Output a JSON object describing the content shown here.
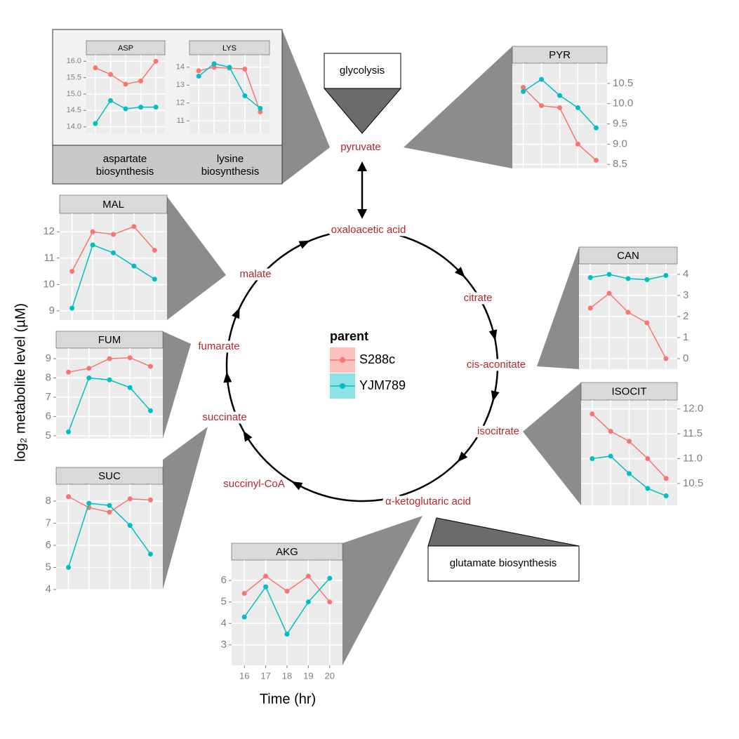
{
  "chart_data": [
    {
      "type": "line",
      "title": "ASP",
      "x": [
        16,
        17,
        18,
        19,
        20
      ],
      "xlim": [
        15.4,
        20.6
      ],
      "ylim": [
        13.8,
        16.2
      ],
      "yticks": [
        {
          "value": 14,
          "label": "14.0"
        },
        14.5,
        {
          "value": 15,
          "label": "15.0"
        },
        15.5,
        {
          "value": 16,
          "label": "16.0"
        }
      ],
      "y_side": "left",
      "grid": true,
      "series": [
        {
          "name": "S288c",
          "color": "#F8766D",
          "values": [
            15.8,
            15.6,
            15.3,
            15.4,
            16.0
          ]
        },
        {
          "name": "YJM789",
          "color": "#00BFC4",
          "values": [
            14.1,
            14.8,
            14.55,
            14.6,
            14.6
          ]
        }
      ]
    },
    {
      "type": "line",
      "title": "LYS",
      "x": [
        16,
        17,
        18,
        19,
        20
      ],
      "xlim": [
        15.4,
        20.6
      ],
      "ylim": [
        10.3,
        14.7
      ],
      "yticks": [
        11,
        12,
        13,
        14
      ],
      "y_side": "left",
      "grid": true,
      "series": [
        {
          "name": "S288c",
          "color": "#F8766D",
          "values": [
            13.8,
            14.0,
            13.95,
            13.9,
            11.5
          ]
        },
        {
          "name": "YJM789",
          "color": "#00BFC4",
          "values": [
            13.5,
            14.2,
            14.0,
            12.4,
            11.7
          ]
        }
      ]
    },
    {
      "type": "line",
      "title": "PYR",
      "x": [
        16,
        17,
        18,
        19,
        20
      ],
      "xlim": [
        15.4,
        20.6
      ],
      "ylim": [
        8.4,
        11.0
      ],
      "yticks": [
        8.5,
        {
          "value": 9,
          "label": "9.0"
        },
        9.5,
        {
          "value": 10,
          "label": "10.0"
        },
        10.5
      ],
      "y_side": "right",
      "grid": true,
      "series": [
        {
          "name": "S288c",
          "color": "#F8766D",
          "values": [
            10.4,
            9.95,
            9.9,
            9.0,
            8.6
          ]
        },
        {
          "name": "YJM789",
          "color": "#00BFC4",
          "values": [
            10.3,
            10.6,
            10.2,
            9.9,
            9.4
          ]
        }
      ]
    },
    {
      "type": "line",
      "title": "MAL",
      "x": [
        16,
        17,
        18,
        19,
        20
      ],
      "xlim": [
        15.4,
        20.6
      ],
      "ylim": [
        8.65,
        12.7
      ],
      "yticks": [
        9,
        10,
        11,
        12
      ],
      "y_side": "left",
      "grid": true,
      "series": [
        {
          "name": "S288c",
          "color": "#F8766D",
          "values": [
            10.5,
            12.0,
            11.9,
            12.2,
            11.3
          ]
        },
        {
          "name": "YJM789",
          "color": "#00BFC4",
          "values": [
            9.1,
            11.5,
            11.2,
            10.7,
            10.2
          ]
        }
      ]
    },
    {
      "type": "line",
      "title": "FUM",
      "x": [
        16,
        17,
        18,
        19,
        20
      ],
      "xlim": [
        15.4,
        20.6
      ],
      "ylim": [
        4.85,
        9.55
      ],
      "yticks": [
        5,
        6,
        7,
        8,
        9
      ],
      "y_side": "left",
      "grid": true,
      "series": [
        {
          "name": "S288c",
          "color": "#F8766D",
          "values": [
            8.3,
            8.5,
            9.0,
            9.05,
            8.6
          ]
        },
        {
          "name": "YJM789",
          "color": "#00BFC4",
          "values": [
            5.2,
            8.0,
            7.9,
            7.5,
            6.3
          ]
        }
      ]
    },
    {
      "type": "line",
      "title": "SUC",
      "x": [
        16,
        17,
        18,
        19,
        20
      ],
      "xlim": [
        15.4,
        20.6
      ],
      "ylim": [
        4.0,
        8.76
      ],
      "yticks": [
        4,
        5,
        6,
        7,
        8
      ],
      "y_side": "left",
      "grid": true,
      "series": [
        {
          "name": "S288c",
          "color": "#F8766D",
          "values": [
            8.2,
            7.7,
            7.5,
            8.1,
            8.05
          ]
        },
        {
          "name": "YJM789",
          "color": "#00BFC4",
          "values": [
            5.0,
            7.9,
            7.8,
            6.9,
            5.6
          ]
        }
      ]
    },
    {
      "type": "line",
      "title": "AKG",
      "x": [
        16,
        17,
        18,
        19,
        20
      ],
      "xlim": [
        15.4,
        20.6
      ],
      "ylim": [
        2.05,
        6.95
      ],
      "xticks": [
        16,
        17,
        18,
        19,
        20
      ],
      "yticks": [
        3,
        4,
        5,
        6
      ],
      "y_side": "left",
      "grid": true,
      "series": [
        {
          "name": "S288c",
          "color": "#F8766D",
          "values": [
            5.4,
            6.2,
            5.5,
            6.2,
            5.0
          ]
        },
        {
          "name": "YJM789",
          "color": "#00BFC4",
          "values": [
            4.3,
            5.7,
            3.5,
            5.0,
            6.1
          ]
        }
      ]
    },
    {
      "type": "line",
      "title": "CAN",
      "x": [
        16,
        17,
        18,
        19,
        20
      ],
      "xlim": [
        15.4,
        20.6
      ],
      "ylim": [
        -0.5,
        4.5
      ],
      "yticks": [
        0,
        1,
        2,
        3,
        4
      ],
      "y_side": "right",
      "grid": true,
      "series": [
        {
          "name": "S288c",
          "color": "#F8766D",
          "values": [
            2.4,
            3.1,
            2.2,
            1.7,
            0
          ]
        },
        {
          "name": "YJM789",
          "color": "#00BFC4",
          "values": [
            3.85,
            4.0,
            3.8,
            3.75,
            3.95
          ]
        }
      ]
    },
    {
      "type": "line",
      "title": "ISOCIT",
      "x": [
        16,
        17,
        18,
        19,
        20
      ],
      "xlim": [
        15.4,
        20.6
      ],
      "ylim": [
        10.06,
        12.18
      ],
      "yticks": [
        10.5,
        {
          "value": 11,
          "label": "11.0"
        },
        11.5,
        {
          "value": 12,
          "label": "12.0"
        }
      ],
      "y_side": "right",
      "grid": true,
      "series": [
        {
          "name": "S288c",
          "color": "#F8766D",
          "values": [
            11.9,
            11.55,
            11.35,
            11.0,
            10.6
          ]
        },
        {
          "name": "YJM789",
          "color": "#00BFC4",
          "values": [
            11.0,
            11.05,
            10.7,
            10.4,
            10.25
          ]
        }
      ]
    }
  ],
  "y_label": "log₂ metabolite level (µM)",
  "x_label": "Time (hr)",
  "legend_title": "parent",
  "pathway": {
    "nodes": [
      "pyruvate",
      "oxaloacetic acid",
      "citrate",
      "cis-aconitate",
      "isocitrate",
      "α-ketoglutaric acid",
      "succinyl-CoA",
      "succinate",
      "fumarate",
      "malate"
    ]
  },
  "boxes": {
    "glycolysis": "glycolysis",
    "glutamate": "glutamate biosynthesis",
    "aspartate": [
      "aspartate",
      "biosynthesis"
    ],
    "lysine": [
      "lysine",
      "biosynthesis"
    ]
  }
}
